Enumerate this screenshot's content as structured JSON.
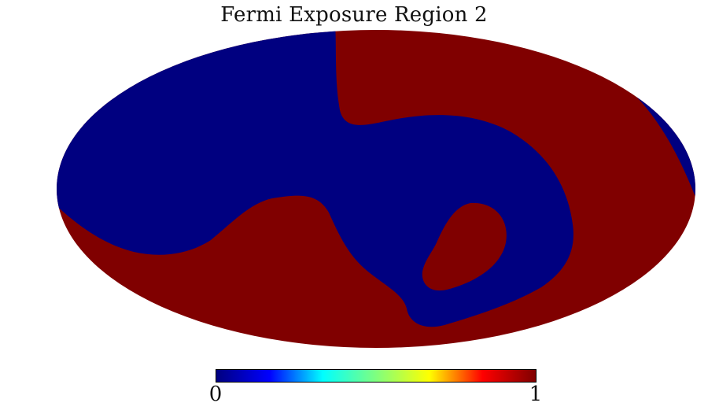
{
  "title": "Fermi Exposure Region 2",
  "colorbar": {
    "min_label": "0",
    "max_label": "1",
    "colormap": "jet",
    "stops": [
      "#00007f",
      "#0000ff",
      "#00ffff",
      "#7fff7f",
      "#ffff00",
      "#ff0000",
      "#7f0000"
    ]
  },
  "map": {
    "projection": "mollweide",
    "colors": {
      "value_0": "#000080",
      "value_1": "#800000"
    }
  }
}
